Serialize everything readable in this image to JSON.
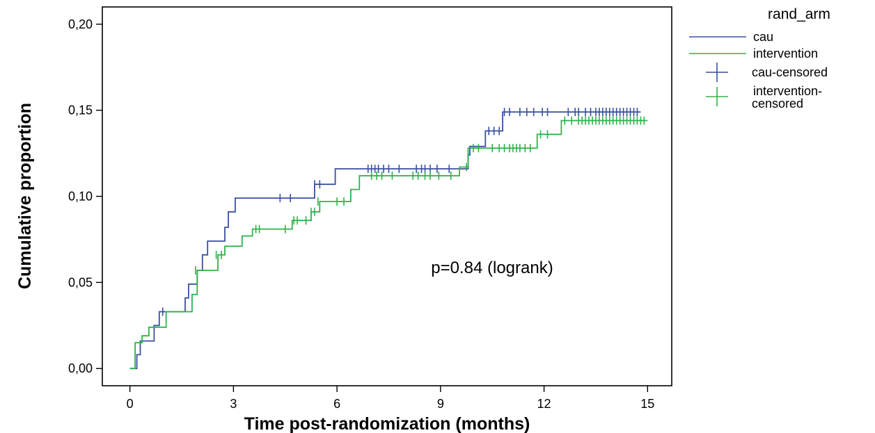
{
  "chart_data": {
    "type": "line",
    "step": true,
    "xlabel": "Time post-randomization (months)",
    "ylabel": "Cumulative proportion",
    "xlim": [
      -0.8,
      15.7
    ],
    "ylim": [
      -0.01,
      0.21
    ],
    "x_ticks": [
      0,
      3,
      6,
      9,
      12,
      15
    ],
    "y_ticks": [
      0.0,
      0.05,
      0.1,
      0.15,
      0.2
    ],
    "y_tick_labels": [
      "0,00",
      "0,05",
      "0,10",
      "0,15",
      "0,20"
    ],
    "annotation": "p=0.84 (logrank)",
    "legend_title": "rand_arm",
    "legend_position": "top-right, outside plot",
    "grid": false,
    "series": [
      {
        "name": "cau",
        "censor_name": "cau-censored",
        "color": "#3a4fa0",
        "points": [
          [
            0.0,
            0.0
          ],
          [
            0.2,
            0.0
          ],
          [
            0.2,
            0.008
          ],
          [
            0.3,
            0.008
          ],
          [
            0.3,
            0.016
          ],
          [
            0.7,
            0.016
          ],
          [
            0.7,
            0.025
          ],
          [
            0.85,
            0.025
          ],
          [
            0.85,
            0.033
          ],
          [
            1.6,
            0.033
          ],
          [
            1.6,
            0.041
          ],
          [
            1.7,
            0.041
          ],
          [
            1.7,
            0.049
          ],
          [
            1.95,
            0.049
          ],
          [
            1.95,
            0.057
          ],
          [
            2.1,
            0.057
          ],
          [
            2.1,
            0.066
          ],
          [
            2.25,
            0.066
          ],
          [
            2.25,
            0.074
          ],
          [
            2.75,
            0.074
          ],
          [
            2.75,
            0.082
          ],
          [
            2.85,
            0.082
          ],
          [
            2.85,
            0.091
          ],
          [
            3.05,
            0.091
          ],
          [
            3.05,
            0.099
          ],
          [
            5.35,
            0.099
          ],
          [
            5.35,
            0.107
          ],
          [
            5.95,
            0.107
          ],
          [
            5.95,
            0.116
          ],
          [
            9.8,
            0.116
          ],
          [
            9.8,
            0.124
          ],
          [
            9.85,
            0.124
          ],
          [
            9.85,
            0.129
          ],
          [
            10.3,
            0.129
          ],
          [
            10.3,
            0.138
          ],
          [
            10.8,
            0.138
          ],
          [
            10.8,
            0.149
          ],
          [
            14.8,
            0.149
          ]
        ],
        "censored_x": [
          0.95,
          4.35,
          4.65,
          5.35,
          5.5,
          6.9,
          7.0,
          7.1,
          7.2,
          7.35,
          7.5,
          7.8,
          8.3,
          8.45,
          8.55,
          8.7,
          8.9,
          9.25,
          9.8,
          10.4,
          10.55,
          10.7,
          10.85,
          11.0,
          11.3,
          11.5,
          11.7,
          11.95,
          12.1,
          12.7,
          12.9,
          13.0,
          13.2,
          13.35,
          13.5,
          13.6,
          13.7,
          13.8,
          13.9,
          14.0,
          14.1,
          14.2,
          14.3,
          14.4,
          14.5,
          14.6,
          14.7
        ],
        "censored_y": [
          0.033,
          0.099,
          0.099,
          0.107,
          0.107,
          0.116,
          0.116,
          0.116,
          0.116,
          0.116,
          0.116,
          0.116,
          0.116,
          0.116,
          0.116,
          0.116,
          0.116,
          0.116,
          0.124,
          0.138,
          0.138,
          0.138,
          0.149,
          0.149,
          0.149,
          0.149,
          0.149,
          0.149,
          0.149,
          0.149,
          0.149,
          0.149,
          0.149,
          0.149,
          0.149,
          0.149,
          0.149,
          0.149,
          0.149,
          0.149,
          0.149,
          0.149,
          0.149,
          0.149,
          0.149,
          0.149,
          0.149
        ]
      },
      {
        "name": "intervention",
        "censor_name": "intervention-censored",
        "color": "#2eb34a",
        "points": [
          [
            0.0,
            0.0
          ],
          [
            0.15,
            0.0
          ],
          [
            0.15,
            0.015
          ],
          [
            0.35,
            0.015
          ],
          [
            0.35,
            0.019
          ],
          [
            0.55,
            0.019
          ],
          [
            0.55,
            0.024
          ],
          [
            1.05,
            0.024
          ],
          [
            1.05,
            0.033
          ],
          [
            1.8,
            0.033
          ],
          [
            1.8,
            0.043
          ],
          [
            1.95,
            0.043
          ],
          [
            1.95,
            0.057
          ],
          [
            2.55,
            0.057
          ],
          [
            2.55,
            0.066
          ],
          [
            2.75,
            0.066
          ],
          [
            2.75,
            0.071
          ],
          [
            3.25,
            0.071
          ],
          [
            3.25,
            0.077
          ],
          [
            3.55,
            0.077
          ],
          [
            3.55,
            0.081
          ],
          [
            4.7,
            0.081
          ],
          [
            4.7,
            0.086
          ],
          [
            5.25,
            0.086
          ],
          [
            5.25,
            0.091
          ],
          [
            5.5,
            0.091
          ],
          [
            5.5,
            0.097
          ],
          [
            6.4,
            0.097
          ],
          [
            6.4,
            0.104
          ],
          [
            6.65,
            0.104
          ],
          [
            6.65,
            0.112
          ],
          [
            9.55,
            0.112
          ],
          [
            9.55,
            0.117
          ],
          [
            9.8,
            0.117
          ],
          [
            9.8,
            0.128
          ],
          [
            11.8,
            0.128
          ],
          [
            11.8,
            0.136
          ],
          [
            12.5,
            0.136
          ],
          [
            12.5,
            0.144
          ],
          [
            15.0,
            0.144
          ]
        ],
        "censored_x": [
          1.9,
          2.5,
          2.65,
          3.65,
          3.75,
          4.5,
          4.75,
          4.85,
          5.1,
          5.25,
          5.35,
          5.45,
          6.0,
          6.2,
          7.0,
          7.15,
          7.3,
          7.6,
          8.2,
          8.35,
          8.55,
          8.7,
          8.95,
          9.3,
          9.75,
          9.95,
          10.1,
          10.5,
          10.7,
          10.85,
          11.0,
          11.1,
          11.2,
          11.3,
          11.45,
          11.6,
          11.9,
          12.1,
          12.6,
          12.8,
          13.0,
          13.1,
          13.2,
          13.3,
          13.4,
          13.5,
          13.6,
          13.7,
          13.8,
          13.9,
          14.0,
          14.1,
          14.2,
          14.3,
          14.4,
          14.5,
          14.6,
          14.7,
          14.8,
          14.9
        ],
        "censored_y": [
          0.057,
          0.066,
          0.066,
          0.081,
          0.081,
          0.081,
          0.086,
          0.086,
          0.086,
          0.091,
          0.091,
          0.097,
          0.097,
          0.097,
          0.112,
          0.112,
          0.112,
          0.112,
          0.112,
          0.112,
          0.112,
          0.112,
          0.112,
          0.112,
          0.117,
          0.128,
          0.128,
          0.128,
          0.128,
          0.128,
          0.128,
          0.128,
          0.128,
          0.128,
          0.128,
          0.128,
          0.136,
          0.136,
          0.144,
          0.144,
          0.144,
          0.144,
          0.144,
          0.144,
          0.144,
          0.144,
          0.144,
          0.144,
          0.144,
          0.144,
          0.144,
          0.144,
          0.144,
          0.144,
          0.144,
          0.144,
          0.144,
          0.144,
          0.144,
          0.144
        ]
      }
    ]
  }
}
